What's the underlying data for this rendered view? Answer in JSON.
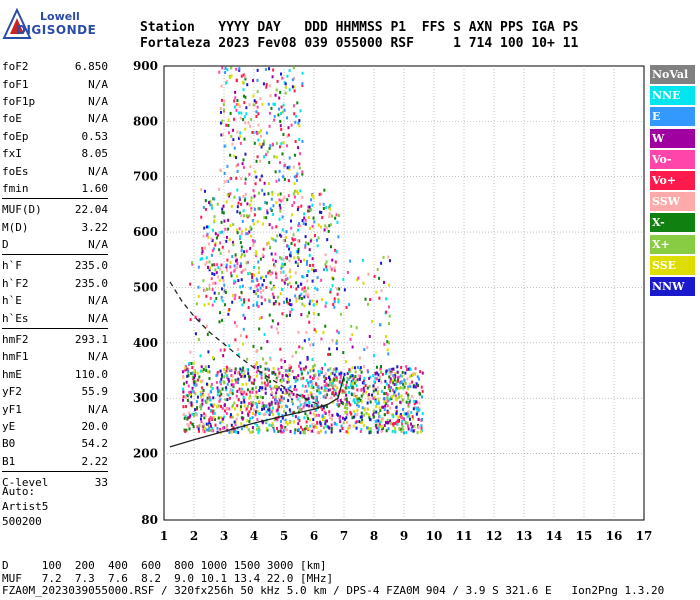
{
  "logo": {
    "line1": "Lowell",
    "line2": "DIGISONDE"
  },
  "header": {
    "row1": "Station   YYYY DAY   DDD HHMMSS P1  FFS S AXN PPS IGA PS",
    "row2": "Fortaleza 2023 Fev08 039 055000 RSF     1 714 100 10+ 11"
  },
  "params_groups": [
    [
      [
        "foF2",
        "6.850"
      ],
      [
        "foF1",
        "N/A"
      ],
      [
        "foF1p",
        "N/A"
      ],
      [
        "foE",
        "N/A"
      ],
      [
        "foEp",
        "0.53"
      ],
      [
        "fxI",
        "8.05"
      ],
      [
        "foEs",
        "N/A"
      ],
      [
        "fmin",
        "1.60"
      ]
    ],
    [
      [
        "MUF(D)",
        "22.04"
      ],
      [
        "M(D)",
        "3.22"
      ],
      [
        "D",
        "N/A"
      ]
    ],
    [
      [
        "h`F",
        "235.0"
      ],
      [
        "h`F2",
        "235.0"
      ],
      [
        "h`E",
        "N/A"
      ],
      [
        "h`Es",
        "N/A"
      ]
    ],
    [
      [
        "hmF2",
        "293.1"
      ],
      [
        "hmF1",
        "N/A"
      ],
      [
        "hmE",
        "110.0"
      ],
      [
        "yF2",
        "55.9"
      ],
      [
        "yF1",
        "N/A"
      ],
      [
        "yE",
        "20.0"
      ],
      [
        "B0",
        "54.2"
      ],
      [
        "B1",
        "2.22"
      ]
    ],
    [
      [
        "C-level",
        "33"
      ]
    ]
  ],
  "auto": {
    "l1": "Auto:",
    "l2": "Artist5",
    "l3": "500200"
  },
  "legend": [
    {
      "label": "NoVal",
      "color": "#808080"
    },
    {
      "label": "NNE",
      "color": "#00e5ee"
    },
    {
      "label": "E",
      "color": "#3399ff"
    },
    {
      "label": "W",
      "color": "#a000a0"
    },
    {
      "label": "Vo-",
      "color": "#ff44aa"
    },
    {
      "label": "Vo+",
      "color": "#ff1a4d"
    },
    {
      "label": "SSW",
      "color": "#ffaaaa"
    },
    {
      "label": "X-",
      "color": "#108010"
    },
    {
      "label": "X+",
      "color": "#88cc44"
    },
    {
      "label": "SSE",
      "color": "#dddd00"
    },
    {
      "label": "NNW",
      "color": "#1a1acc"
    }
  ],
  "footer": {
    "d_row": "D     100  200  400  600  800 1000 1500 3000 [km]",
    "muf_row": "MUF   7.2  7.3  7.6  8.2  9.0 10.1 13.4 22.0 [MHz]",
    "file_row": "FZA0M_2023039055000.RSF / 320fx256h 50 kHz 5.0 km / DPS-4 FZA0M 904 / 3.9 S 321.6 E   Ion2Png 1.3.20"
  },
  "chart_data": {
    "type": "scatter",
    "xlabel": "",
    "ylabel": "",
    "xlim": [
      1,
      17
    ],
    "ylim": [
      80,
      900
    ],
    "xticks": [
      1,
      2,
      3,
      4,
      5,
      6,
      7,
      8,
      9,
      10,
      11,
      12,
      13,
      14,
      15,
      16,
      17
    ],
    "yticks": [
      80,
      200,
      300,
      400,
      500,
      600,
      700,
      800,
      900
    ],
    "grid": true,
    "traces": [
      {
        "name": "virtual-height-trace",
        "style": "solid",
        "x": [
          1.2,
          2,
          3,
          4,
          5,
          6,
          6.5,
          6.8,
          7
        ],
        "y": [
          212,
          225,
          240,
          255,
          268,
          280,
          290,
          300,
          340
        ]
      },
      {
        "name": "profile",
        "style": "dashed",
        "x": [
          1.2,
          1.6,
          2,
          2.5,
          3,
          3.5,
          4,
          4.5,
          5,
          5.5,
          6,
          6.4
        ],
        "y": [
          510,
          475,
          448,
          420,
          398,
          375,
          355,
          337,
          320,
          305,
          292,
          285
        ]
      }
    ],
    "echo_regions": [
      {
        "x": [
          1.6,
          9.6
        ],
        "y": [
          240,
          360
        ],
        "density": "dense"
      },
      {
        "x": [
          1.8,
          8.5
        ],
        "y": [
          360,
          560
        ],
        "density": "sparse"
      },
      {
        "x": [
          2.2,
          6.8
        ],
        "y": [
          470,
          680
        ],
        "density": "medium"
      },
      {
        "x": [
          2.8,
          5.6
        ],
        "y": [
          690,
          900
        ],
        "density": "sparse"
      }
    ]
  }
}
